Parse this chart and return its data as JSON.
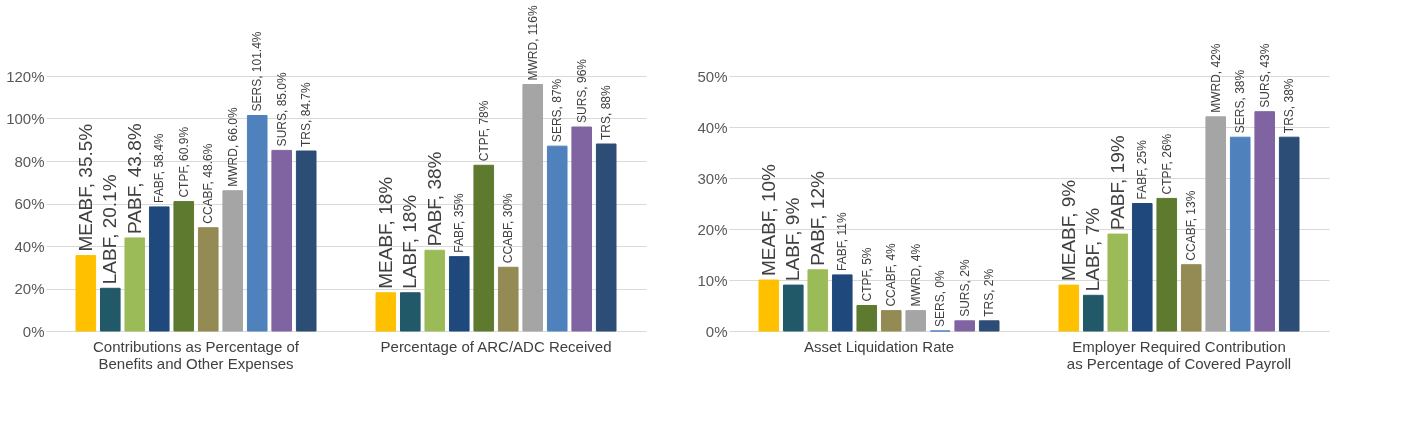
{
  "chart_data": [
    {
      "type": "bar",
      "categories": [
        "Contributions as Percentage of Benefits and Other Expenses",
        "Percentage of ARC/ADC Received"
      ],
      "ylim": [
        0,
        120
      ],
      "yticks": [
        {
          "value": 0,
          "label": "0%"
        },
        {
          "value": 20,
          "label": "20%"
        },
        {
          "value": 40,
          "label": "40%"
        },
        {
          "value": 60,
          "label": "60%"
        },
        {
          "value": 80,
          "label": "80%"
        },
        {
          "value": 100,
          "label": "100%"
        },
        {
          "value": 120,
          "label": "120%"
        }
      ],
      "grid": "y",
      "series": [
        {
          "color": "#ffc000",
          "values": [
            35.5,
            18
          ],
          "value_labels": [
            "MEABF, 35.5%",
            "MEABF, 18%"
          ]
        },
        {
          "color": "#215968",
          "values": [
            20.1,
            18
          ],
          "value_labels": [
            "LABF, 20.1%",
            "LABF, 18%"
          ]
        },
        {
          "color": "#9bbb59",
          "values": [
            43.8,
            38
          ],
          "value_labels": [
            "PABF, 43.8%",
            "PABF, 38%"
          ]
        },
        {
          "color": "#1f497d",
          "values": [
            58.4,
            35
          ],
          "value_labels": [
            "FABF, 58.4%",
            "FABF, 35%"
          ]
        },
        {
          "color": "#5d7a2f",
          "values": [
            60.9,
            78
          ],
          "value_labels": [
            "CTPF, 60.9%",
            "CTPF, 78%"
          ]
        },
        {
          "color": "#948a54",
          "values": [
            48.6,
            30
          ],
          "value_labels": [
            "CCABF, 48.6%",
            "CCABF, 30%"
          ]
        },
        {
          "color": "#a5a5a5",
          "values": [
            66.0,
            116
          ],
          "value_labels": [
            "MWRD, 66.0%",
            "MWRD, 116%"
          ]
        },
        {
          "color": "#4f81bd",
          "values": [
            101.4,
            87
          ],
          "value_labels": [
            "SERS, 101.4%",
            "SERS, 87%"
          ]
        },
        {
          "color": "#8064a2",
          "values": [
            85.0,
            96
          ],
          "value_labels": [
            "SURS, 85.0%",
            "SURS, 96%"
          ]
        },
        {
          "color": "#2c4d75",
          "values": [
            84.7,
            88
          ],
          "value_labels": [
            "TRS, 84.7%",
            "TRS, 88%"
          ]
        }
      ]
    },
    {
      "type": "bar",
      "categories": [
        "Asset Liquidation Rate",
        "Employer Required Contribution as Percentage of Covered Payroll"
      ],
      "ylim": [
        0,
        50
      ],
      "yticks": [
        {
          "value": 0,
          "label": "0%"
        },
        {
          "value": 10,
          "label": "10%"
        },
        {
          "value": 20,
          "label": "20%"
        },
        {
          "value": 30,
          "label": "30%"
        },
        {
          "value": 40,
          "label": "40%"
        },
        {
          "value": 50,
          "label": "50%"
        }
      ],
      "grid": "y",
      "series": [
        {
          "color": "#ffc000",
          "values": [
            10,
            9
          ],
          "value_labels": [
            "MEABF, 10%",
            "MEABF, 9%"
          ]
        },
        {
          "color": "#215968",
          "values": [
            9,
            7
          ],
          "value_labels": [
            "LABF, 9%",
            "LABF, 7%"
          ]
        },
        {
          "color": "#9bbb59",
          "values": [
            12,
            19
          ],
          "value_labels": [
            "PABF, 12%",
            "PABF, 19%"
          ]
        },
        {
          "color": "#1f497d",
          "values": [
            11,
            25
          ],
          "value_labels": [
            "FABF, 11%",
            "FABF, 25%"
          ]
        },
        {
          "color": "#5d7a2f",
          "values": [
            5,
            26
          ],
          "value_labels": [
            "CTPF, 5%",
            "CTPF, 26%"
          ]
        },
        {
          "color": "#948a54",
          "values": [
            4,
            13
          ],
          "value_labels": [
            "CCABF, 4%",
            "CCABF, 13%"
          ]
        },
        {
          "color": "#a5a5a5",
          "values": [
            4,
            42
          ],
          "value_labels": [
            "MWRD, 4%",
            "MWRD, 42%"
          ]
        },
        {
          "color": "#4f81bd",
          "values": [
            0,
            38
          ],
          "value_labels": [
            "SERS, 0%",
            "SERS, 38%"
          ]
        },
        {
          "color": "#8064a2",
          "values": [
            2,
            43
          ],
          "value_labels": [
            "SURS, 2%",
            "SURS, 43%"
          ]
        },
        {
          "color": "#2c4d75",
          "values": [
            2,
            38
          ],
          "value_labels": [
            "TRS, 2%",
            "TRS, 38%"
          ]
        }
      ]
    }
  ]
}
